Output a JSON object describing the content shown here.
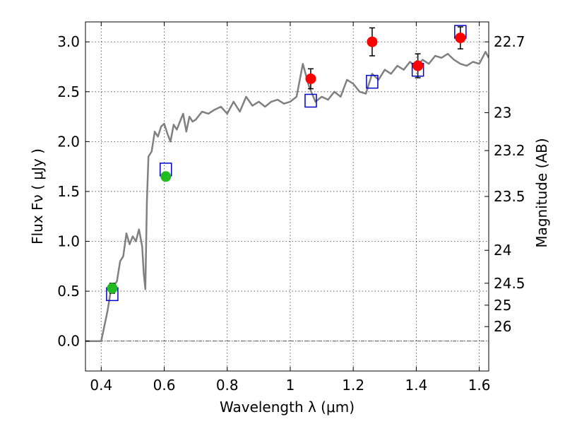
{
  "chart_data": {
    "type": "scatter",
    "xlabel": "Wavelength  λ (μm)",
    "ylabel": "Flux  Fν  ( μJy )",
    "ylabel_right": "Magnitude (AB)",
    "xlim": [
      0.35,
      1.63
    ],
    "ylim": [
      -0.3,
      3.2
    ],
    "grid": true,
    "x_ticks": [
      0.4,
      0.6,
      0.8,
      1.0,
      1.2,
      1.4,
      1.6
    ],
    "x_tick_labels": [
      "0.4",
      "0.6",
      "0.8",
      "1",
      "1.2",
      "1.4",
      "1.6"
    ],
    "y_ticks": [
      0.0,
      0.5,
      1.0,
      1.5,
      2.0,
      2.5,
      3.0
    ],
    "y_tick_labels": [
      "0.0",
      "0.5",
      "1.0",
      "1.5",
      "2.0",
      "2.5",
      "3.0"
    ],
    "magnitude_ticks": [
      {
        "label": "22.7",
        "flux": 3.0
      },
      {
        "label": "23",
        "flux": 2.29
      },
      {
        "label": "23.2",
        "flux": 1.91
      },
      {
        "label": "23.5",
        "flux": 1.45
      },
      {
        "label": "24",
        "flux": 0.91
      },
      {
        "label": "24.5",
        "flux": 0.58
      },
      {
        "label": "25",
        "flux": 0.36
      },
      {
        "label": "26",
        "flux": 0.145
      }
    ],
    "zero_line": 0.0,
    "series": [
      {
        "kind": "model_spectrum",
        "color": "#808080",
        "x": [
          0.35,
          0.4,
          0.42,
          0.43,
          0.44,
          0.45,
          0.46,
          0.47,
          0.48,
          0.49,
          0.5,
          0.51,
          0.52,
          0.53,
          0.535,
          0.54,
          0.545,
          0.55,
          0.56,
          0.57,
          0.58,
          0.59,
          0.6,
          0.61,
          0.62,
          0.63,
          0.64,
          0.65,
          0.66,
          0.67,
          0.68,
          0.69,
          0.7,
          0.72,
          0.74,
          0.76,
          0.78,
          0.8,
          0.82,
          0.84,
          0.86,
          0.88,
          0.9,
          0.92,
          0.94,
          0.96,
          0.98,
          1.0,
          1.02,
          1.04,
          1.06,
          1.08,
          1.1,
          1.12,
          1.14,
          1.16,
          1.18,
          1.2,
          1.22,
          1.24,
          1.26,
          1.28,
          1.3,
          1.32,
          1.34,
          1.36,
          1.38,
          1.4,
          1.42,
          1.44,
          1.46,
          1.48,
          1.5,
          1.52,
          1.54,
          1.56,
          1.58,
          1.6,
          1.62,
          1.63
        ],
        "y": [
          0.0,
          0.0,
          0.3,
          0.5,
          0.55,
          0.6,
          0.8,
          0.85,
          1.08,
          0.97,
          1.05,
          1.0,
          1.12,
          0.95,
          0.68,
          0.52,
          1.4,
          1.85,
          1.9,
          2.1,
          2.05,
          2.15,
          2.18,
          2.08,
          2.0,
          2.17,
          2.12,
          2.2,
          2.28,
          2.1,
          2.25,
          2.2,
          2.22,
          2.3,
          2.28,
          2.32,
          2.35,
          2.28,
          2.4,
          2.3,
          2.45,
          2.36,
          2.4,
          2.35,
          2.4,
          2.42,
          2.38,
          2.4,
          2.45,
          2.78,
          2.55,
          2.4,
          2.45,
          2.42,
          2.5,
          2.45,
          2.62,
          2.58,
          2.5,
          2.48,
          2.68,
          2.62,
          2.72,
          2.68,
          2.76,
          2.72,
          2.8,
          2.75,
          2.82,
          2.78,
          2.86,
          2.84,
          2.88,
          2.82,
          2.78,
          2.76,
          2.8,
          2.78,
          2.9,
          2.84
        ]
      },
      {
        "kind": "model_photometry",
        "marker": "open-square",
        "color": "#0000cc",
        "x": [
          0.435,
          0.605,
          1.065,
          1.26,
          1.405,
          1.54
        ],
        "y": [
          0.47,
          1.72,
          2.41,
          2.6,
          2.72,
          3.1
        ]
      },
      {
        "kind": "observed_optical",
        "marker": "circle",
        "color": "#22bb22",
        "x": [
          0.435,
          0.605
        ],
        "y": [
          0.53,
          1.65
        ],
        "yerr": [
          0.05,
          0.04
        ]
      },
      {
        "kind": "observed_nir",
        "marker": "circle",
        "color": "#ff0000",
        "x": [
          1.065,
          1.26,
          1.405,
          1.54
        ],
        "y": [
          2.63,
          3.0,
          2.76,
          3.04
        ],
        "yerr": [
          0.1,
          0.14,
          0.12,
          0.11
        ]
      }
    ]
  }
}
